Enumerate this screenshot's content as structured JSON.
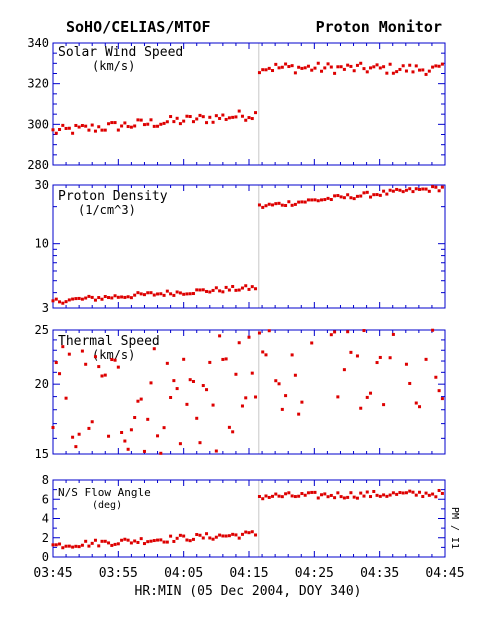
{
  "header": {
    "left_title": "SoHO/CELIAS/MTOF",
    "right_title": "Proton Monitor"
  },
  "colors": {
    "frame": "#0000cc",
    "points": "#dd0000",
    "event_line": "#c8c8c8",
    "text": "#000000"
  },
  "side_label": "PM / I1",
  "x_axis": {
    "label": "HR:MIN (05 Dec 2004, DOY 340)",
    "tick_labels": [
      "03:45",
      "03:55",
      "04:05",
      "04:15",
      "04:25",
      "04:35",
      "04:45"
    ],
    "range_minutes": [
      0,
      60
    ],
    "major_ticks_minutes": [
      0,
      10,
      20,
      30,
      40,
      50,
      60
    ],
    "minor_step_minutes": 2,
    "event_marker_minutes": 31.5
  },
  "chart_data": [
    {
      "type": "scatter",
      "title": "Solar Wind Speed",
      "unit": "(km/s)",
      "scale": "linear",
      "ylim": [
        280,
        340
      ],
      "y_ticks": [
        280,
        300,
        320,
        340
      ],
      "y_tick_labels": [
        "280",
        "300",
        "320",
        "340"
      ],
      "minor_ticks": [
        285,
        290,
        295,
        305,
        310,
        315,
        325,
        330,
        335
      ],
      "jump_minute": 31.5,
      "segments": [
        {
          "from": 0,
          "to": 31.4,
          "start": 296.5,
          "end": 305
        },
        {
          "from": 31.6,
          "to": 60,
          "start": 328,
          "end": 327
        }
      ],
      "noise": 2.6
    },
    {
      "type": "scatter",
      "title": "Proton Density",
      "unit": "(1/cm^3)",
      "scale": "log",
      "ylim": [
        3,
        30
      ],
      "y_ticks": [
        3,
        10,
        30
      ],
      "y_tick_labels": [
        "3",
        "10",
        "30"
      ],
      "minor_ticks": [
        4,
        5,
        6,
        7,
        8,
        9,
        20
      ],
      "jump_minute": 31.5,
      "segments": [
        {
          "from": 0,
          "to": 31.4,
          "start": 3.4,
          "end": 4.4
        },
        {
          "from": 31.6,
          "to": 60,
          "start": 20,
          "end": 28.5
        }
      ],
      "noise": 0.05
    },
    {
      "type": "scatter",
      "title": "Thermal Speed",
      "unit": "(km/s)",
      "scale": "log",
      "ylim": [
        15,
        25
      ],
      "y_ticks": [
        15,
        20,
        25
      ],
      "y_tick_labels": [
        "15",
        "20",
        "25"
      ],
      "minor_ticks": [
        16,
        17,
        18,
        19,
        21,
        22,
        23,
        24
      ],
      "jump_minute": 31.5,
      "segments": [
        {
          "from": 0,
          "to": 31.4,
          "start": 18.6,
          "end": 19.2
        },
        {
          "from": 31.6,
          "to": 60,
          "start": 22.5,
          "end": 23.2
        }
      ],
      "noise": 0.25
    },
    {
      "type": "scatter",
      "title": "N/S Flow Angle",
      "unit": "(deg)",
      "scale": "linear",
      "ylim": [
        0,
        8
      ],
      "y_ticks": [
        0,
        2,
        4,
        6,
        8
      ],
      "y_tick_labels": [
        "0",
        "2",
        "4",
        "6",
        "8"
      ],
      "minor_ticks": [
        1,
        3,
        5,
        7
      ],
      "jump_minute": 31.5,
      "segments": [
        {
          "from": 0,
          "to": 31.4,
          "start": 1.2,
          "end": 2.4
        },
        {
          "from": 31.6,
          "to": 60,
          "start": 6.3,
          "end": 6.6
        }
      ],
      "noise": 0.35
    }
  ]
}
